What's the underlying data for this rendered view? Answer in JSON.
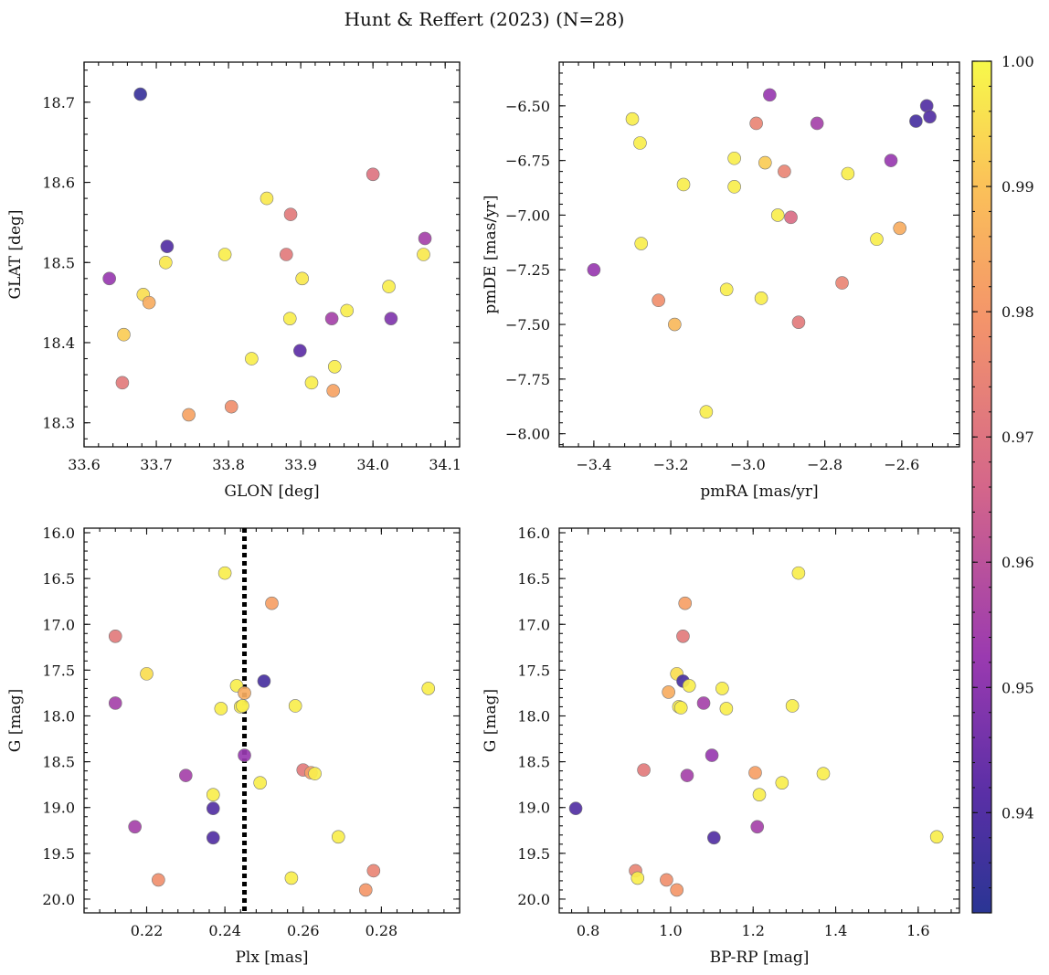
{
  "figure": {
    "title": "Hunt & Reffert (2023) (N=28)"
  },
  "colorbar": {
    "range": [
      0.932,
      1.0
    ],
    "ticks": [
      0.94,
      0.95,
      0.96,
      0.97,
      0.98,
      0.99,
      1.0
    ],
    "tick_labels": [
      "0.94",
      "0.95",
      "0.96",
      "0.97",
      "0.98",
      "0.99",
      "1.00"
    ],
    "colormap": "plasma"
  },
  "chart_data": [
    {
      "type": "scatter",
      "xlabel": "GLON [deg]",
      "ylabel": "GLAT [deg]",
      "xlim": [
        33.6,
        34.12
      ],
      "ylim": [
        18.27,
        18.75
      ],
      "xticks": [
        33.6,
        33.7,
        33.8,
        33.9,
        34.0,
        34.1
      ],
      "xtick_labels": [
        "33.6",
        "33.7",
        "33.8",
        "33.9",
        "34.0",
        "34.1"
      ],
      "yticks": [
        18.3,
        18.4,
        18.5,
        18.6,
        18.7
      ],
      "ytick_labels": [
        "18.3",
        "18.4",
        "18.5",
        "18.6",
        "18.7"
      ],
      "x": [
        33.678,
        34.0,
        33.853,
        33.886,
        34.072,
        33.715,
        33.713,
        33.795,
        33.88,
        33.635,
        33.682,
        33.69,
        33.902,
        34.022,
        33.655,
        33.885,
        33.964,
        33.943,
        34.025,
        33.899,
        33.832,
        33.947,
        33.915,
        33.653,
        33.945,
        33.804,
        33.745,
        34.07
      ],
      "y": [
        18.71,
        18.61,
        18.58,
        18.56,
        18.53,
        18.52,
        18.5,
        18.51,
        18.51,
        18.48,
        18.46,
        18.45,
        18.48,
        18.47,
        18.41,
        18.43,
        18.44,
        18.43,
        18.43,
        18.39,
        18.38,
        18.37,
        18.35,
        18.35,
        18.34,
        18.32,
        18.31,
        18.51
      ],
      "color_value": [
        0.935,
        0.97,
        0.997,
        0.972,
        0.955,
        0.94,
        0.997,
        0.998,
        0.972,
        0.952,
        0.995,
        0.985,
        0.997,
        0.998,
        0.992,
        0.998,
        0.998,
        0.955,
        0.948,
        0.942,
        0.998,
        0.998,
        0.998,
        0.972,
        0.983,
        0.978,
        0.983,
        0.997
      ]
    },
    {
      "type": "scatter",
      "xlabel": "pmRA [mas/yr]",
      "ylabel": "pmDE [mas/yr]",
      "xlim": [
        -3.49,
        -2.45
      ],
      "ylim": [
        -8.06,
        -6.3
      ],
      "xticks": [
        -3.4,
        -3.2,
        -3.0,
        -2.8,
        -2.6
      ],
      "xtick_labels": [
        "−3.4",
        "−3.2",
        "−3.0",
        "−2.8",
        "−2.6"
      ],
      "yticks": [
        -8.0,
        -7.75,
        -7.5,
        -7.25,
        -7.0,
        -6.75,
        -6.5
      ],
      "ytick_labels": [
        "−8.00",
        "−7.75",
        "−7.50",
        "−7.25",
        "−7.00",
        "−6.75",
        "−6.50"
      ],
      "x": [
        -2.943,
        -2.535,
        -2.527,
        -2.563,
        -3.3,
        -2.978,
        -2.82,
        -3.28,
        -3.035,
        -2.955,
        -2.628,
        -2.905,
        -2.74,
        -3.167,
        -3.035,
        -2.922,
        -2.888,
        -2.665,
        -2.605,
        -3.277,
        -3.4,
        -3.055,
        -2.755,
        -2.965,
        -3.232,
        -3.19,
        -2.868,
        -3.108
      ],
      "y": [
        -6.45,
        -6.5,
        -6.55,
        -6.57,
        -6.56,
        -6.58,
        -6.58,
        -6.67,
        -6.74,
        -6.76,
        -6.75,
        -6.8,
        -6.81,
        -6.86,
        -6.87,
        -7.0,
        -7.01,
        -7.11,
        -7.06,
        -7.13,
        -7.25,
        -7.34,
        -7.31,
        -7.38,
        -7.39,
        -7.5,
        -7.49,
        -7.9
      ],
      "color_value": [
        0.952,
        0.94,
        0.94,
        0.938,
        0.998,
        0.975,
        0.955,
        0.998,
        0.998,
        0.992,
        0.952,
        0.975,
        0.998,
        0.998,
        0.998,
        0.998,
        0.968,
        0.998,
        0.985,
        0.998,
        0.952,
        0.998,
        0.975,
        0.998,
        0.978,
        0.988,
        0.972,
        0.998
      ]
    },
    {
      "type": "scatter",
      "xlabel": "Plx [mas]",
      "ylabel": "G [mag]",
      "xlim": [
        0.204,
        0.3
      ],
      "ylim": [
        20.15,
        15.95
      ],
      "xticks": [
        0.22,
        0.24,
        0.26,
        0.28
      ],
      "xtick_labels": [
        "0.22",
        "0.24",
        "0.26",
        "0.28"
      ],
      "yticks": [
        16.0,
        16.5,
        17.0,
        17.5,
        18.0,
        18.5,
        19.0,
        19.5,
        20.0
      ],
      "ytick_labels": [
        "16.0",
        "16.5",
        "17.0",
        "17.5",
        "18.0",
        "18.5",
        "19.0",
        "19.5",
        "20.0"
      ],
      "vline": 0.245,
      "x": [
        0.24,
        0.252,
        0.212,
        0.22,
        0.25,
        0.243,
        0.292,
        0.245,
        0.212,
        0.239,
        0.244,
        0.258,
        0.245,
        0.26,
        0.262,
        0.263,
        0.23,
        0.249,
        0.237,
        0.237,
        0.217,
        0.237,
        0.269,
        0.278,
        0.223,
        0.257,
        0.276,
        0.2445
      ],
      "y": [
        16.44,
        16.77,
        17.13,
        17.54,
        17.62,
        17.67,
        17.7,
        17.75,
        17.86,
        17.92,
        17.9,
        17.89,
        18.43,
        18.59,
        18.62,
        18.63,
        18.65,
        18.73,
        18.86,
        19.01,
        19.21,
        19.33,
        19.32,
        19.69,
        19.79,
        19.77,
        19.9,
        17.89
      ],
      "color_value": [
        0.998,
        0.982,
        0.972,
        0.995,
        0.938,
        0.998,
        0.998,
        0.985,
        0.955,
        0.998,
        0.998,
        0.998,
        0.952,
        0.972,
        0.982,
        0.998,
        0.955,
        0.998,
        0.998,
        0.94,
        0.955,
        0.94,
        0.998,
        0.975,
        0.978,
        0.998,
        0.98,
        0.998
      ]
    },
    {
      "type": "scatter",
      "xlabel": "BP-RP [mag]",
      "ylabel": "G [mag]",
      "xlim": [
        0.73,
        1.7
      ],
      "ylim": [
        20.15,
        15.95
      ],
      "xticks": [
        0.8,
        1.0,
        1.2,
        1.4,
        1.6
      ],
      "xtick_labels": [
        "0.8",
        "1.0",
        "1.2",
        "1.4",
        "1.6"
      ],
      "yticks": [
        16.0,
        16.5,
        17.0,
        17.5,
        18.0,
        18.5,
        19.0,
        19.5,
        20.0
      ],
      "ytick_labels": [
        "16.0",
        "16.5",
        "17.0",
        "17.5",
        "18.0",
        "18.5",
        "19.0",
        "19.5",
        "20.0"
      ],
      "x": [
        1.31,
        1.035,
        1.03,
        1.015,
        1.03,
        1.045,
        1.125,
        0.995,
        1.08,
        1.135,
        1.02,
        1.295,
        1.1,
        0.935,
        1.205,
        1.37,
        1.04,
        1.27,
        1.215,
        0.77,
        1.21,
        1.105,
        1.645,
        0.915,
        0.99,
        0.92,
        1.015,
        1.025
      ],
      "y": [
        16.44,
        16.77,
        17.13,
        17.54,
        17.62,
        17.67,
        17.7,
        17.74,
        17.86,
        17.92,
        17.9,
        17.89,
        18.43,
        18.59,
        18.62,
        18.63,
        18.65,
        18.73,
        18.86,
        19.01,
        19.21,
        19.33,
        19.32,
        19.69,
        19.79,
        19.77,
        19.9,
        17.91
      ],
      "color_value": [
        0.998,
        0.982,
        0.972,
        0.995,
        0.938,
        0.998,
        0.998,
        0.985,
        0.955,
        0.998,
        0.998,
        0.998,
        0.952,
        0.972,
        0.982,
        0.998,
        0.955,
        0.998,
        0.998,
        0.94,
        0.955,
        0.94,
        0.998,
        0.975,
        0.978,
        0.998,
        0.98,
        0.998
      ]
    }
  ]
}
